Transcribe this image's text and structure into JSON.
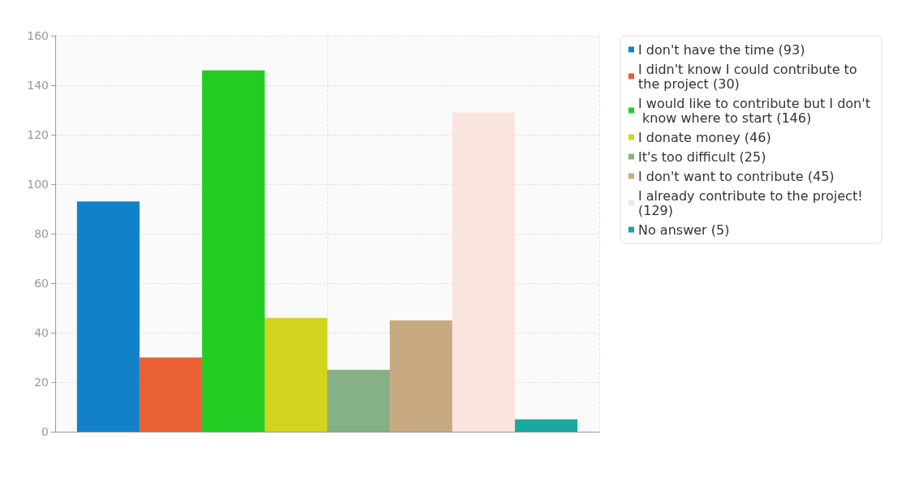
{
  "chart_data": {
    "type": "bar",
    "categories": [
      null
    ],
    "series": [
      {
        "name": "I don't have the time (93)",
        "color": "#1281c9",
        "values": [
          93
        ]
      },
      {
        "name": "I didn't know I could contribute to the project (30)",
        "color": "#e86033",
        "values": [
          30
        ]
      },
      {
        "name": "I would like to contribute but I don't know where to start (146)",
        "color": "#22cc22",
        "values": [
          146
        ]
      },
      {
        "name": "I donate money (46)",
        "color": "#d3d41e",
        "values": [
          46
        ]
      },
      {
        "name": "It's too difficult (25)",
        "color": "#86b184",
        "values": [
          25
        ]
      },
      {
        "name": "I don't want to contribute (45)",
        "color": "#c8aa82",
        "values": [
          45
        ]
      },
      {
        "name": "I already contribute to the project! (129)",
        "color": "#fae5de",
        "values": [
          129
        ]
      },
      {
        "name": "No answer (5)",
        "color": "#17a8a0",
        "values": [
          5
        ]
      }
    ],
    "ylim": [
      0,
      160
    ],
    "yticks": [
      0,
      20,
      40,
      60,
      80,
      100,
      120,
      140,
      160
    ],
    "grid": true,
    "legend": "top right"
  }
}
